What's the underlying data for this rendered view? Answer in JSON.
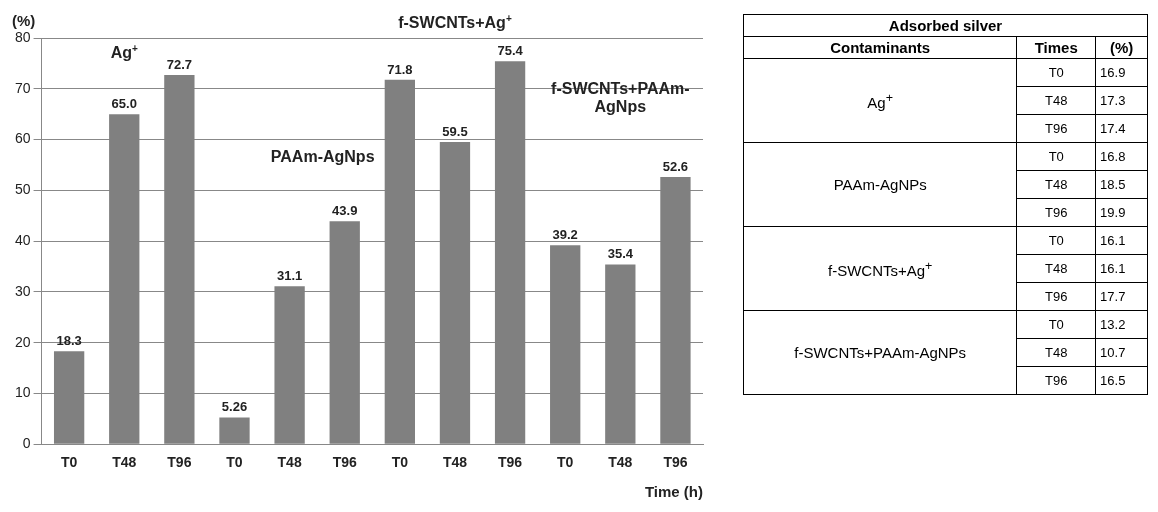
{
  "chart_data": [
    {
      "type": "bar",
      "ylabel": "(%)",
      "xlabel": "Time (h)",
      "categories": [
        "T0",
        "T48",
        "T96",
        "T0",
        "T48",
        "T96",
        "T0",
        "T48",
        "T96",
        "T0",
        "T48",
        "T96"
      ],
      "values": [
        18.3,
        65.0,
        72.7,
        5.26,
        31.1,
        43.9,
        71.8,
        59.5,
        75.4,
        39.2,
        35.4,
        52.6
      ],
      "value_labels": [
        "18.3",
        "65.0",
        "72.7",
        "5.26",
        "31.1",
        "43.9",
        "71.8",
        "59.5",
        "75.4",
        "39.2",
        "35.4",
        "52.6"
      ],
      "color": "#808080",
      "ylim": [
        0,
        80
      ],
      "yticks": [
        0,
        10,
        20,
        30,
        40,
        50,
        60,
        70,
        80
      ],
      "grid": "y",
      "legend": false,
      "annotations": [
        "Ag$^{+}$",
        "PAAm-AgNps",
        "f-SWCNTs+Ag$^{+}$",
        "f-SWCNTs+PAAm-AgNps"
      ]
    },
    {
      "type": "other",
      "title": "Adsorbed silver",
      "categories": [
        "Contaminants",
        "Times",
        "(%)"
      ],
      "y_categories": [
        "Ag$^{+}$",
        "PAAm-AgNPs",
        "f-SWCNTs+Ag$^{+}$",
        "f-SWCNTs+PAAm-AgNPs"
      ],
      "y2_categories": [
        "T0",
        "T48",
        "T96"
      ],
      "cell_labels": [
        [
          "16.9",
          "17.3",
          "17.4"
        ],
        [
          "16.8",
          "18.5",
          "19.9"
        ],
        [
          "16.1",
          "16.1",
          "17.7"
        ],
        [
          "13.2",
          "10.7",
          "16.5"
        ]
      ]
    }
  ]
}
